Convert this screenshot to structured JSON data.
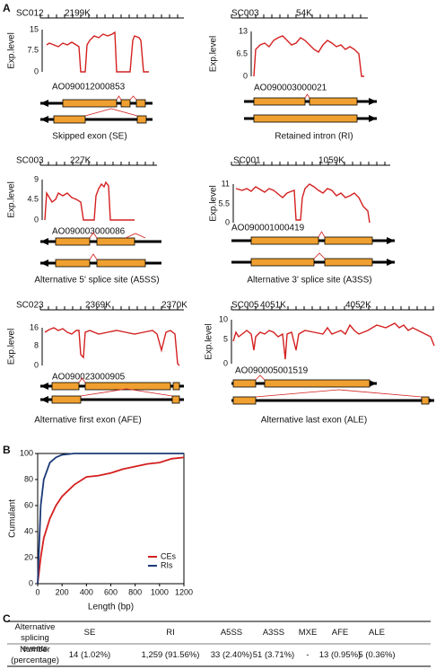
{
  "panel_labels": [
    "A",
    "B",
    "C"
  ],
  "panel_a": [
    {
      "chromosome": "SC012",
      "positions": [
        "2199K"
      ],
      "ylabel": "Exp.level",
      "yticks": [
        "15",
        "7.5",
        "0"
      ],
      "gene": "AO090012000853",
      "event": "Skipped exon (SE)"
    },
    {
      "chromosome": "SC003",
      "positions": [
        "54K"
      ],
      "ylabel": "Exp.level",
      "yticks": [
        "13",
        "6.5",
        "0"
      ],
      "gene": "AO090003000021",
      "event": "Retained intron (RI)"
    },
    {
      "chromosome": "SC003",
      "positions": [
        "227K"
      ],
      "ylabel": "Exp.level",
      "yticks": [
        "9",
        "4.5",
        "0"
      ],
      "gene": "AO090003000086",
      "event": "Alternative 5' splice site (A5SS)"
    },
    {
      "chromosome": "SC001",
      "positions": [
        "1059K"
      ],
      "ylabel": "Exp.level",
      "yticks": [
        "11",
        "5.5",
        "0"
      ],
      "gene": "AO090001000419",
      "event": "Alternative 3' splice site (A3SS)"
    },
    {
      "chromosome": "SC023",
      "positions": [
        "2369K",
        "2370K"
      ],
      "ylabel": "Exp.level",
      "yticks": [
        "16",
        "8",
        "0"
      ],
      "gene": "AO090023000905",
      "event": "Alternative first exon (AFE)"
    },
    {
      "chromosome": "SC005",
      "positions": [
        "4051K",
        "4052K"
      ],
      "ylabel": "Exp.level",
      "yticks": [
        "10",
        "5",
        "0"
      ],
      "gene": "AO090005001519",
      "event": "Alternative last exon (ALE)"
    }
  ],
  "chart_data": {
    "type": "line",
    "xlabel": "Length (bp)",
    "ylabel": "Cumulant",
    "x": [
      0,
      25,
      50,
      100,
      150,
      200,
      300,
      400,
      500,
      600,
      700,
      800,
      900,
      1000,
      1100,
      1200
    ],
    "series": [
      {
        "name": "CEs",
        "color": "#d42020",
        "values": [
          0,
          20,
          35,
          50,
          60,
          67,
          76,
          82,
          83,
          85,
          88,
          90,
          92,
          93,
          96,
          97
        ]
      },
      {
        "name": "RIs",
        "color": "#1c3a78",
        "values": [
          0,
          60,
          80,
          93,
          97,
          99,
          100,
          100,
          100,
          100,
          100,
          100,
          100,
          100,
          100,
          100
        ]
      }
    ],
    "xlim": [
      0,
      1200
    ],
    "ylim": [
      0,
      100
    ],
    "xticks": [
      0,
      200,
      400,
      600,
      800,
      1000,
      1200
    ],
    "yticks": [
      0,
      20,
      40,
      60,
      80,
      100
    ],
    "legend": "lower right"
  },
  "table": {
    "header": [
      "Alternative splicing events",
      "SE",
      "RI",
      "A5SS",
      "A3SS",
      "MXE",
      "AFE",
      "ALE"
    ],
    "rows": [
      [
        "Number (percentage)",
        "14 (1.02%)",
        "1,259 (91.56%)",
        "33 (2.40%)",
        "51 (3.71%)",
        "-",
        "13 (0.95%)",
        "5 (0.36%)"
      ]
    ]
  }
}
